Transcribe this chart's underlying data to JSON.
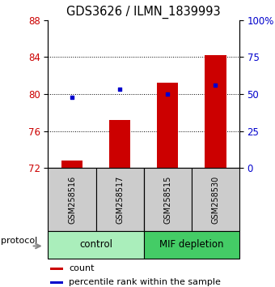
{
  "title": "GDS3626 / ILMN_1839993",
  "samples": [
    "GSM258516",
    "GSM258517",
    "GSM258515",
    "GSM258530"
  ],
  "bar_values": [
    72.8,
    77.2,
    81.2,
    84.2
  ],
  "bar_bottom": 72,
  "percentile_pct": [
    48,
    53,
    50,
    56
  ],
  "ylim_left": [
    72,
    88
  ],
  "ylim_right": [
    0,
    100
  ],
  "yticks_left": [
    72,
    76,
    80,
    84,
    88
  ],
  "yticks_right": [
    0,
    25,
    50,
    75,
    100
  ],
  "ytick_labels_right": [
    "0",
    "25",
    "50",
    "75",
    "100%"
  ],
  "bar_color": "#cc0000",
  "percentile_color": "#0000cc",
  "groups": [
    {
      "label": "control",
      "indices": [
        0,
        1
      ],
      "color": "#aaeebb"
    },
    {
      "label": "MIF depletion",
      "indices": [
        2,
        3
      ],
      "color": "#44cc66"
    }
  ],
  "tick_label_color_left": "#cc0000",
  "tick_label_color_right": "#0000cc",
  "protocol_label": "protocol",
  "legend_count_label": "count",
  "legend_pct_label": "percentile rank within the sample",
  "sample_box_color": "#cccccc"
}
